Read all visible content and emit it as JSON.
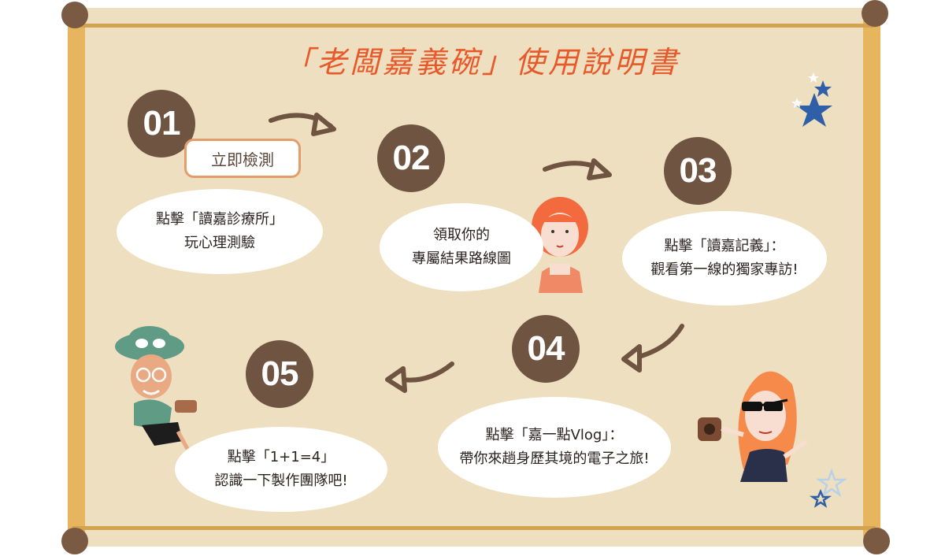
{
  "header": {
    "title": "「老闆嘉義碗」使用說明書"
  },
  "colors": {
    "board": "#eddfbf",
    "frame": "#e6b55e",
    "nail": "#7b5a44",
    "number_circle": "#6f5441",
    "title": "#e8592a",
    "arrow": "#6f5441",
    "star": "#2f5fa6"
  },
  "steps": [
    {
      "number": "01",
      "button_label": "立即檢測",
      "line1": "點擊「讀嘉診療所」",
      "line2": "玩心理測驗"
    },
    {
      "number": "02",
      "line1": "領取你的",
      "line2": "專屬結果路線圖"
    },
    {
      "number": "03",
      "line1": "點擊「讀嘉記義」：",
      "line2": "觀看第一線的獨家專訪!"
    },
    {
      "number": "04",
      "line1": "點擊「嘉一點Vlog」：",
      "line2": "帶你來趟身歷其境的電子之旅!"
    },
    {
      "number": "05",
      "line1": "點擊「1+1=4」",
      "line2": "認識一下製作團隊吧!"
    }
  ],
  "decorations": [
    "star-icon",
    "arrow-icon",
    "girl-illustration",
    "man-illustration",
    "woman-illustration"
  ]
}
